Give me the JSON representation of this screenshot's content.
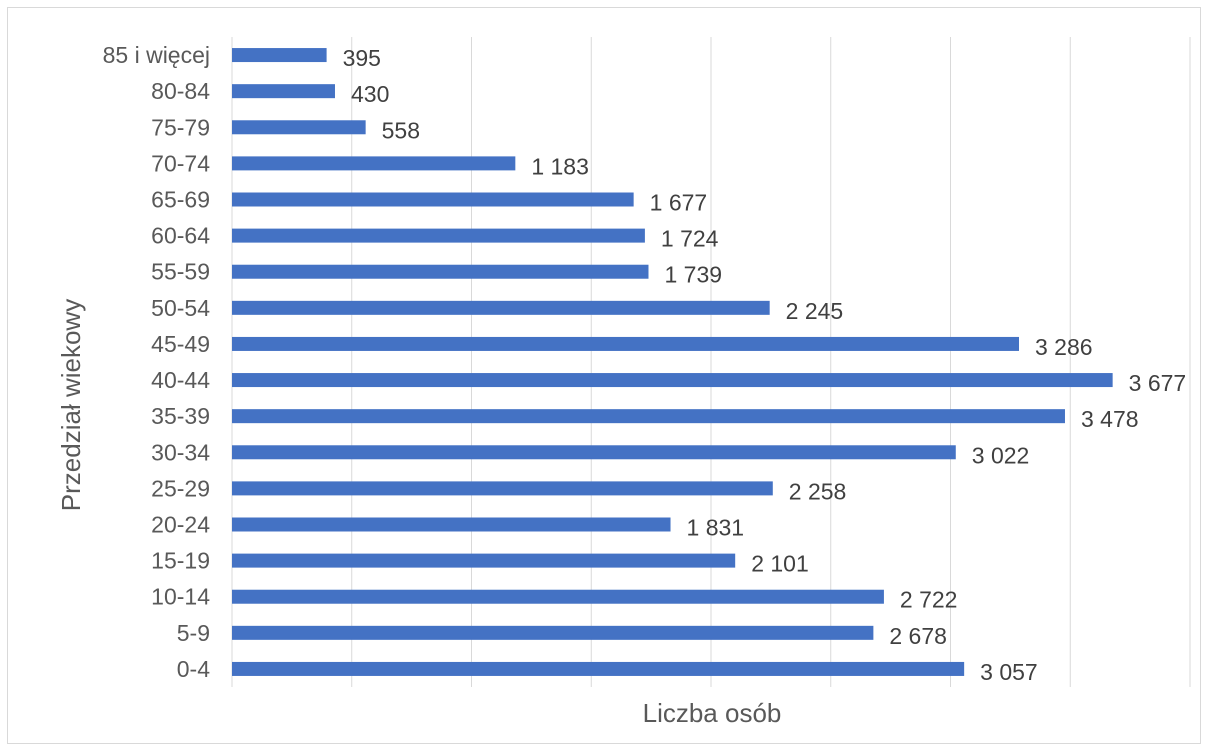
{
  "chart_data": {
    "type": "bar",
    "orientation": "horizontal",
    "categories": [
      "0-4",
      "5-9",
      "10-14",
      "15-19",
      "20-24",
      "25-29",
      "30-34",
      "35-39",
      "40-44",
      "45-49",
      "50-54",
      "55-59",
      "60-64",
      "65-69",
      "70-74",
      "75-79",
      "80-84",
      "85 i więcej"
    ],
    "values": [
      3057,
      2678,
      2722,
      2101,
      1831,
      2258,
      3022,
      3478,
      3677,
      3286,
      2245,
      1739,
      1724,
      1677,
      1183,
      558,
      430,
      395
    ],
    "value_labels": [
      "3 057",
      "2 678",
      "2 722",
      "2 101",
      "1 831",
      "2 258",
      "3 022",
      "3 478",
      "3 677",
      "3 286",
      "2 245",
      "1 739",
      "1 724",
      "1 677",
      "1 183",
      "558",
      "430",
      "395"
    ],
    "xlabel": "Liczba osób",
    "ylabel": "Przedział wiekowy",
    "xlim": [
      0,
      4000
    ],
    "grid_step": 500,
    "grid": true,
    "bar_color": "#4472c4"
  }
}
